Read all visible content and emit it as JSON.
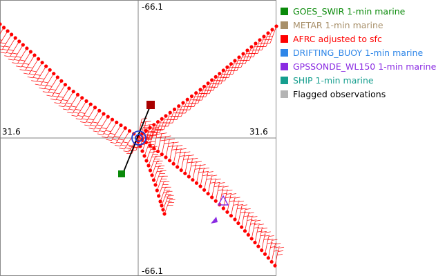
{
  "chart_data": {
    "type": "scatter",
    "center_labels": {
      "top": "-66.1",
      "bottom": "-66.1",
      "left": "31.6",
      "right": "31.6"
    },
    "legend_placement": "right",
    "legend": [
      {
        "label": "GOES_SWIR 1-min marine",
        "color": "#0a8a0a"
      },
      {
        "label": "METAR 1-min marine",
        "color": "#a8906a"
      },
      {
        "label": "AFRC adjusted to sfc",
        "color": "#ff0000"
      },
      {
        "label": "DRIFTING_BUOY 1-min marine",
        "color": "#2e86e8"
      },
      {
        "label": "GPSSONDE_WL150 1-min marine",
        "color": "#8a2be2"
      },
      {
        "label": "SHIP 1-min marine",
        "color": "#159e8e"
      },
      {
        "label": "Flagged observations",
        "color": "#b4b4b4"
      }
    ],
    "series": [
      {
        "name": "AFRC adjusted to sfc",
        "tracks": [
          [
            [
              0,
              35
            ],
            [
              50,
              80
            ],
            [
              100,
              128
            ],
            [
              150,
              165
            ],
            [
              200,
              198
            ]
          ],
          [
            [
              200,
              198
            ],
            [
              240,
              168
            ],
            [
              290,
              130
            ],
            [
              340,
              88
            ],
            [
              400,
              38
            ]
          ],
          [
            [
              200,
              198
            ],
            [
              240,
              228
            ],
            [
              290,
              270
            ],
            [
              340,
              318
            ],
            [
              398,
              385
            ]
          ],
          [
            [
              200,
              205
            ],
            [
              215,
              240
            ],
            [
              225,
              268
            ],
            [
              232,
              292
            ],
            [
              238,
              310
            ]
          ]
        ]
      },
      {
        "name": "GOES_SWIR 1-min marine",
        "points": [
          [
            176,
            252
          ]
        ]
      },
      {
        "name": "METAR 1-min marine",
        "points": [
          [
            218,
            152
          ]
        ]
      },
      {
        "name": "DRIFTING_BUOY 1-min marine",
        "points": [
          [
            201,
            200
          ]
        ]
      },
      {
        "name": "GPSSONDE_WL150 1-min marine",
        "points": [
          [
            323,
            292
          ],
          [
            309,
            320
          ]
        ]
      }
    ],
    "grid": false
  }
}
